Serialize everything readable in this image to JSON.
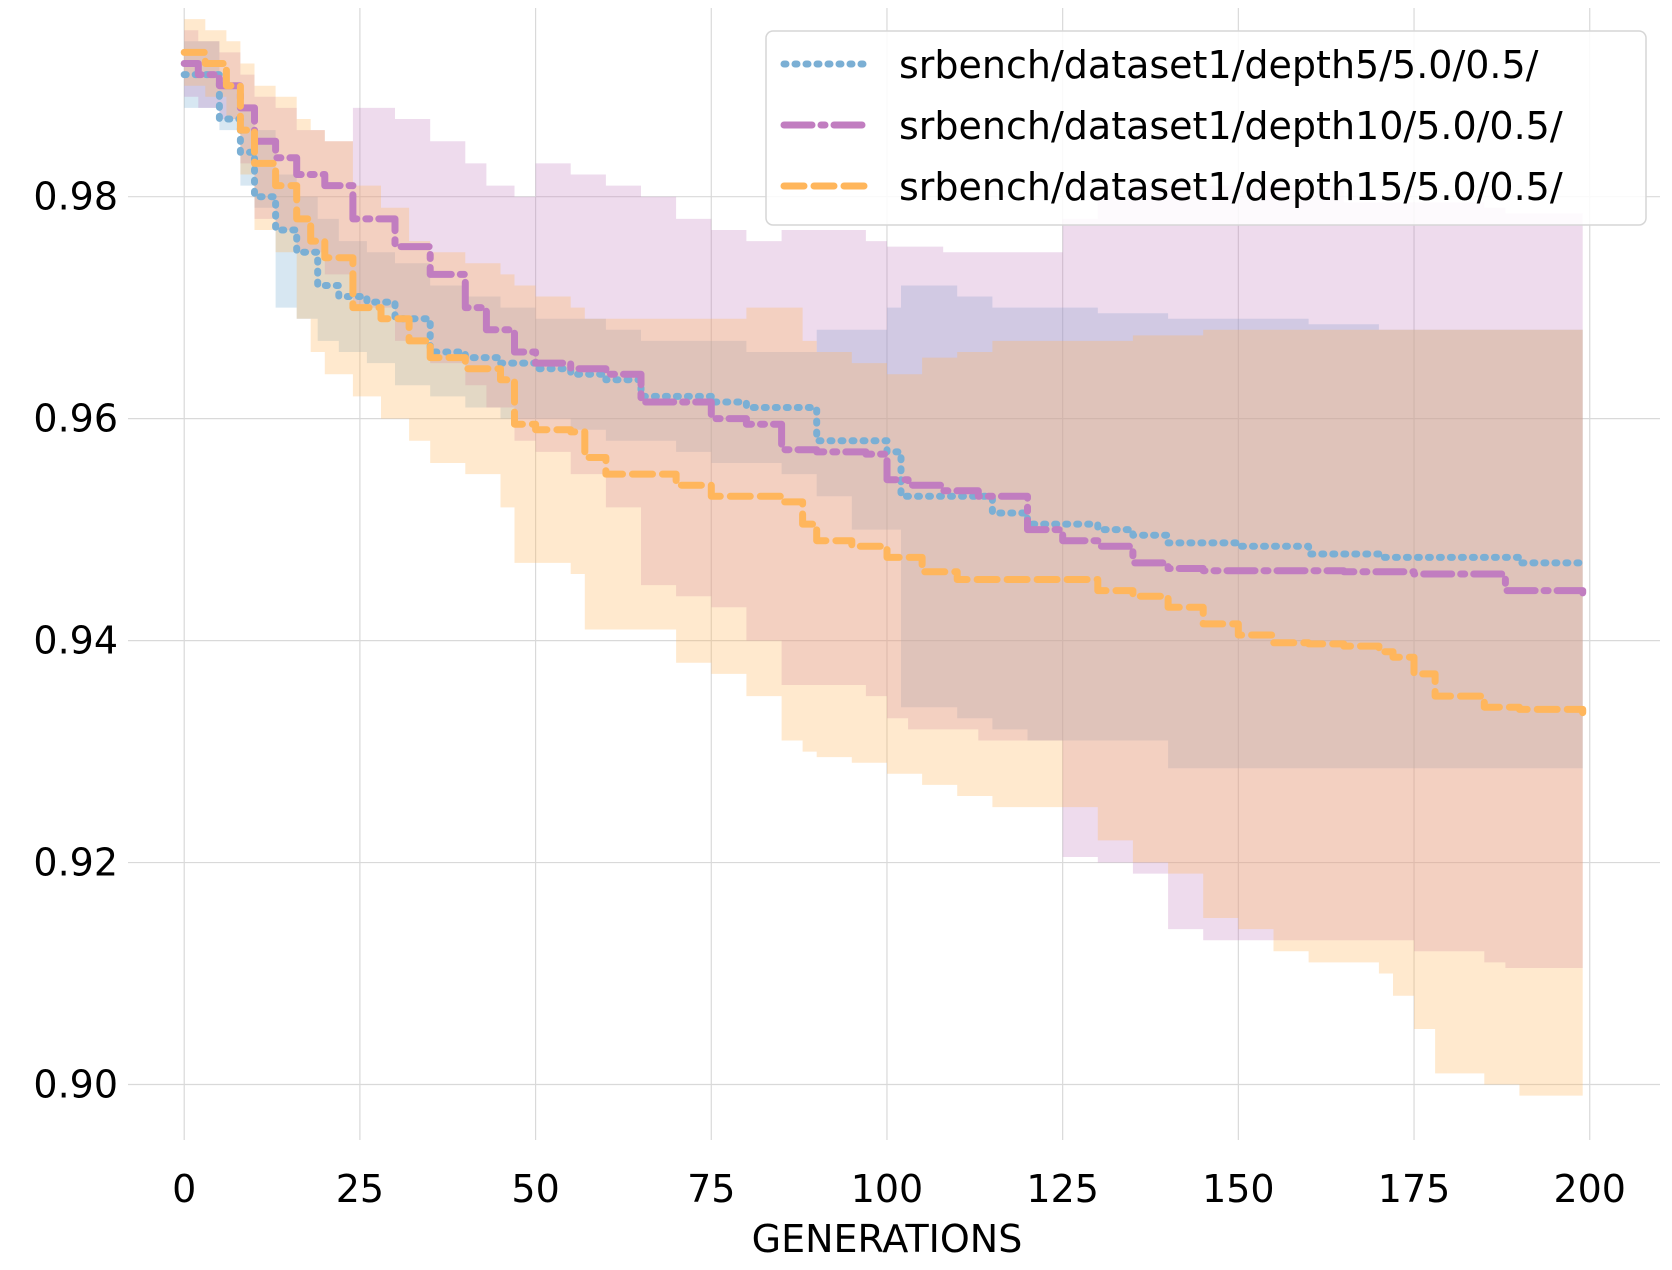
{
  "chart_data": {
    "type": "line",
    "title": "",
    "xlabel": "GENERATIONS",
    "ylabel": "",
    "xlim": [
      -8,
      210
    ],
    "ylim": [
      0.895,
      0.997
    ],
    "x_ticks": [
      0,
      25,
      50,
      75,
      100,
      125,
      150,
      175,
      200
    ],
    "x_tick_labels": [
      "0",
      "25",
      "50",
      "75",
      "100",
      "125",
      "150",
      "175",
      "200"
    ],
    "y_ticks": [
      0.9,
      0.92,
      0.94,
      0.96,
      0.98
    ],
    "y_tick_labels": [
      "0.90",
      "0.92",
      "0.94",
      "0.96",
      "0.98"
    ],
    "grid": true,
    "legend_position": "top-right",
    "series": [
      {
        "name": "srbench/dataset1/depth5/5.0/0.5/",
        "color": "#7bafd4",
        "style": "dotted",
        "x": [
          0,
          5,
          8,
          10,
          13,
          16,
          19,
          22,
          26,
          30,
          35,
          40,
          45,
          50,
          55,
          60,
          65,
          70,
          75,
          80,
          85,
          90,
          95,
          100,
          102,
          110,
          115,
          120,
          130,
          135,
          140,
          150,
          160,
          170,
          180,
          185,
          190,
          199
        ],
        "y": [
          0.991,
          0.987,
          0.984,
          0.98,
          0.977,
          0.975,
          0.972,
          0.971,
          0.9705,
          0.969,
          0.966,
          0.9655,
          0.965,
          0.9645,
          0.964,
          0.9635,
          0.962,
          0.962,
          0.9615,
          0.961,
          0.961,
          0.958,
          0.958,
          0.957,
          0.953,
          0.953,
          0.9515,
          0.9505,
          0.95,
          0.9495,
          0.9488,
          0.9485,
          0.9478,
          0.9475,
          0.9475,
          0.9475,
          0.947,
          0.947
        ],
        "lower": [
          0.988,
          0.986,
          0.981,
          0.979,
          0.97,
          0.969,
          0.967,
          0.966,
          0.965,
          0.963,
          0.962,
          0.961,
          0.96,
          0.96,
          0.959,
          0.958,
          0.958,
          0.957,
          0.956,
          0.956,
          0.955,
          0.953,
          0.95,
          0.95,
          0.934,
          0.933,
          0.932,
          0.931,
          0.931,
          0.931,
          0.9285,
          0.9285,
          0.9285,
          0.9285,
          0.9285,
          0.9285,
          0.9285,
          0.9285
        ],
        "upper": [
          0.994,
          0.99,
          0.988,
          0.986,
          0.982,
          0.98,
          0.978,
          0.976,
          0.975,
          0.974,
          0.972,
          0.971,
          0.97,
          0.969,
          0.969,
          0.968,
          0.967,
          0.967,
          0.967,
          0.966,
          0.966,
          0.968,
          0.968,
          0.97,
          0.972,
          0.971,
          0.97,
          0.97,
          0.9695,
          0.9695,
          0.969,
          0.969,
          0.9685,
          0.968,
          0.968,
          0.968,
          0.968,
          0.968
        ]
      },
      {
        "name": "srbench/dataset1/depth10/5.0/0.5/",
        "color": "#c17dc0",
        "style": "dashdot",
        "x": [
          0,
          2,
          5,
          8,
          10,
          13,
          16,
          20,
          24,
          30,
          35,
          40,
          43,
          47,
          50,
          55,
          60,
          65,
          70,
          75,
          80,
          85,
          90,
          97,
          100,
          103,
          108,
          113,
          118,
          120,
          125,
          130,
          135,
          140,
          145,
          155,
          165,
          175,
          185,
          188,
          199
        ],
        "y": [
          0.992,
          0.991,
          0.99,
          0.988,
          0.985,
          0.9835,
          0.982,
          0.981,
          0.978,
          0.9755,
          0.973,
          0.97,
          0.968,
          0.966,
          0.965,
          0.9645,
          0.964,
          0.9615,
          0.9615,
          0.96,
          0.9595,
          0.9572,
          0.957,
          0.9568,
          0.9545,
          0.954,
          0.9535,
          0.953,
          0.953,
          0.95,
          0.949,
          0.9485,
          0.947,
          0.9465,
          0.9463,
          0.9463,
          0.9462,
          0.946,
          0.946,
          0.9445,
          0.9443
        ],
        "lower": [
          0.989,
          0.988,
          0.987,
          0.983,
          0.978,
          0.977,
          0.975,
          0.973,
          0.97,
          0.967,
          0.965,
          0.963,
          0.961,
          0.958,
          0.957,
          0.955,
          0.952,
          0.945,
          0.944,
          0.943,
          0.94,
          0.936,
          0.936,
          0.935,
          0.933,
          0.932,
          0.932,
          0.931,
          0.931,
          0.931,
          0.9205,
          0.92,
          0.919,
          0.914,
          0.913,
          0.913,
          0.913,
          0.912,
          0.911,
          0.9105,
          0.9105
        ],
        "upper": [
          0.995,
          0.994,
          0.993,
          0.991,
          0.989,
          0.988,
          0.986,
          0.985,
          0.988,
          0.987,
          0.985,
          0.983,
          0.981,
          0.98,
          0.983,
          0.982,
          0.981,
          0.98,
          0.978,
          0.977,
          0.976,
          0.977,
          0.977,
          0.976,
          0.9755,
          0.9755,
          0.975,
          0.975,
          0.975,
          0.975,
          0.978,
          0.98,
          0.981,
          0.981,
          0.981,
          0.981,
          0.9795,
          0.9795,
          0.979,
          0.9785,
          0.9785
        ]
      },
      {
        "name": "srbench/dataset1/depth15/5.0/0.5/",
        "color": "#ffb65c",
        "style": "dashed",
        "x": [
          0,
          3,
          6,
          8,
          10,
          13,
          16,
          18,
          20,
          24,
          28,
          32,
          35,
          40,
          45,
          47,
          50,
          55,
          57,
          60,
          65,
          70,
          75,
          80,
          85,
          88,
          90,
          95,
          100,
          105,
          110,
          115,
          120,
          125,
          130,
          135,
          140,
          145,
          150,
          155,
          160,
          165,
          170,
          172,
          175,
          178,
          185,
          190,
          199
        ],
        "y": [
          0.993,
          0.992,
          0.99,
          0.986,
          0.983,
          0.981,
          0.978,
          0.976,
          0.9745,
          0.97,
          0.969,
          0.967,
          0.9655,
          0.9645,
          0.9635,
          0.9595,
          0.959,
          0.9588,
          0.9565,
          0.955,
          0.955,
          0.954,
          0.953,
          0.953,
          0.9525,
          0.9505,
          0.949,
          0.9485,
          0.9475,
          0.9462,
          0.9455,
          0.9455,
          0.9455,
          0.9455,
          0.9445,
          0.944,
          0.943,
          0.9415,
          0.9405,
          0.9398,
          0.9397,
          0.9395,
          0.939,
          0.9385,
          0.937,
          0.935,
          0.934,
          0.9338,
          0.9335
        ],
        "lower": [
          0.99,
          0.989,
          0.987,
          0.982,
          0.977,
          0.975,
          0.969,
          0.966,
          0.964,
          0.962,
          0.96,
          0.958,
          0.956,
          0.955,
          0.952,
          0.947,
          0.947,
          0.946,
          0.941,
          0.941,
          0.941,
          0.938,
          0.937,
          0.935,
          0.931,
          0.93,
          0.9295,
          0.929,
          0.928,
          0.927,
          0.926,
          0.925,
          0.925,
          0.925,
          0.922,
          0.92,
          0.919,
          0.915,
          0.914,
          0.912,
          0.911,
          0.911,
          0.91,
          0.908,
          0.905,
          0.901,
          0.9,
          0.899,
          0.899
        ],
        "upper": [
          0.996,
          0.995,
          0.994,
          0.992,
          0.99,
          0.989,
          0.987,
          0.986,
          0.985,
          0.981,
          0.979,
          0.976,
          0.975,
          0.974,
          0.973,
          0.972,
          0.971,
          0.97,
          0.969,
          0.969,
          0.969,
          0.969,
          0.969,
          0.97,
          0.97,
          0.967,
          0.966,
          0.965,
          0.964,
          0.9655,
          0.966,
          0.967,
          0.967,
          0.967,
          0.967,
          0.9675,
          0.9675,
          0.968,
          0.968,
          0.968,
          0.968,
          0.968,
          0.968,
          0.968,
          0.968,
          0.968,
          0.968,
          0.968,
          0.968
        ]
      }
    ]
  }
}
